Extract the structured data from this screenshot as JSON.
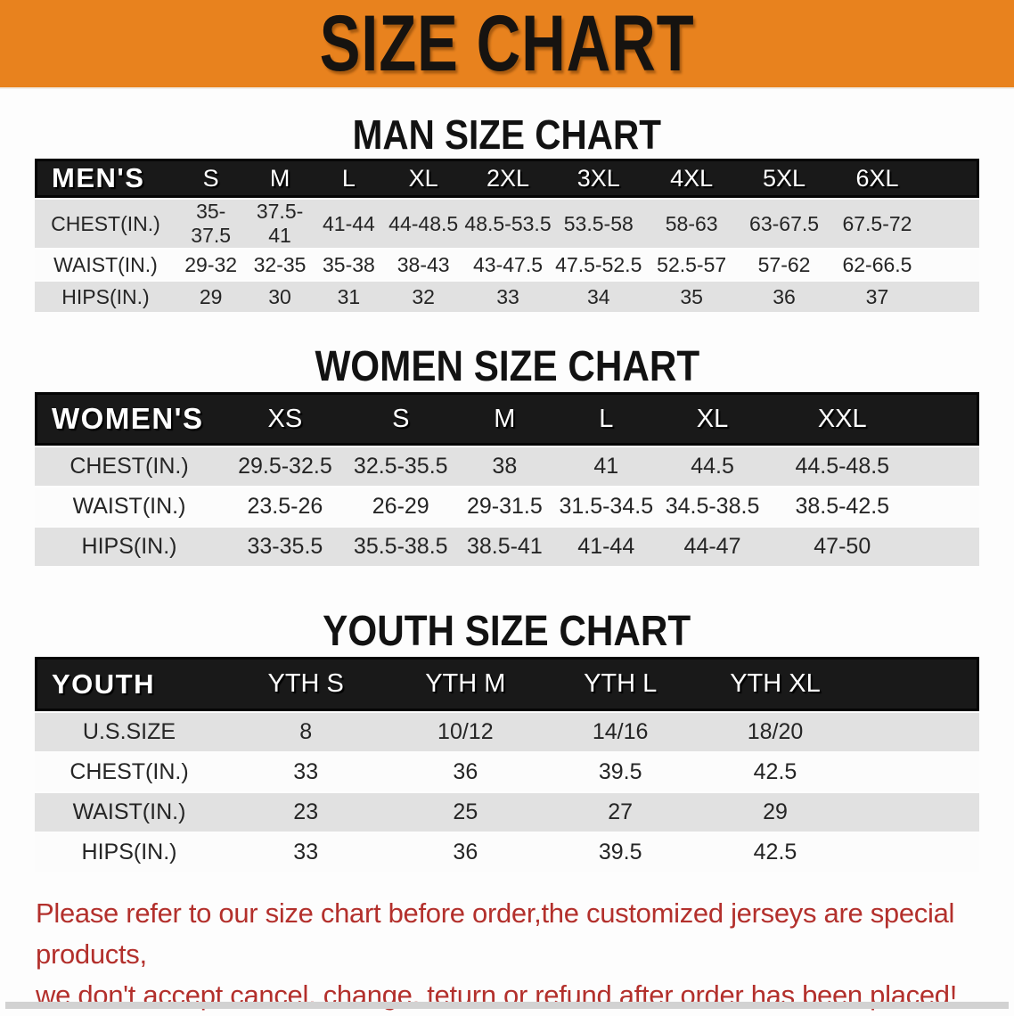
{
  "banner": {
    "title": "SIZE CHART",
    "bg_color": "#E8821E",
    "text_color": "#161310"
  },
  "sections": [
    {
      "heading": "MAN SIZE CHART",
      "table": {
        "header": [
          "MEN'S",
          "S",
          "M",
          "L",
          "XL",
          "2XL",
          "3XL",
          "4XL",
          "5XL",
          "6XL"
        ],
        "rows": [
          [
            "CHEST(IN.)",
            "35-37.5",
            "37.5-41",
            "41-44",
            "44-48.5",
            "48.5-53.5",
            "53.5-58",
            "58-63",
            "63-67.5",
            "67.5-72"
          ],
          [
            "WAIST(IN.)",
            "29-32",
            "32-35",
            "35-38",
            "38-43",
            "43-47.5",
            "47.5-52.5",
            "52.5-57",
            "57-62",
            "62-66.5"
          ],
          [
            "HIPS(IN.)",
            "29",
            "30",
            "31",
            "32",
            "33",
            "34",
            "35",
            "36",
            "37"
          ]
        ]
      }
    },
    {
      "heading": "WOMEN SIZE CHART",
      "table": {
        "header": [
          "WOMEN'S",
          "XS",
          "S",
          "M",
          "L",
          "XL",
          "XXL"
        ],
        "rows": [
          [
            "CHEST(IN.)",
            "29.5-32.5",
            "32.5-35.5",
            "38",
            "41",
            "44.5",
            "44.5-48.5"
          ],
          [
            "WAIST(IN.)",
            "23.5-26",
            "26-29",
            "29-31.5",
            "31.5-34.5",
            "34.5-38.5",
            "38.5-42.5"
          ],
          [
            "HIPS(IN.)",
            "33-35.5",
            "35.5-38.5",
            "38.5-41",
            "41-44",
            "44-47",
            "47-50"
          ]
        ]
      }
    },
    {
      "heading": "YOUTH SIZE CHART",
      "table": {
        "header": [
          "YOUTH",
          "YTH S",
          "YTH M",
          "YTH L",
          "YTH XL"
        ],
        "rows": [
          [
            "U.S.SIZE",
            "8",
            "10/12",
            "14/16",
            "18/20"
          ],
          [
            "CHEST(IN.)",
            "33",
            "36",
            "39.5",
            "42.5"
          ],
          [
            "WAIST(IN.)",
            "23",
            "25",
            "27",
            "29"
          ],
          [
            "HIPS(IN.)",
            "33",
            "36",
            "39.5",
            "42.5"
          ]
        ]
      }
    }
  ],
  "disclaimer": {
    "line1": "Please refer to our size chart before order,the customized jerseys are special products,",
    "line2": "we don't accept cancel, change, teturn or refund after order has been placed!",
    "color": "#B3302C"
  },
  "table_style": {
    "header_bg": "#191919",
    "header_text": "#FFFFFF",
    "row_alt_bg": "#E1E1E1",
    "row_bg": "#FCFCFC"
  }
}
